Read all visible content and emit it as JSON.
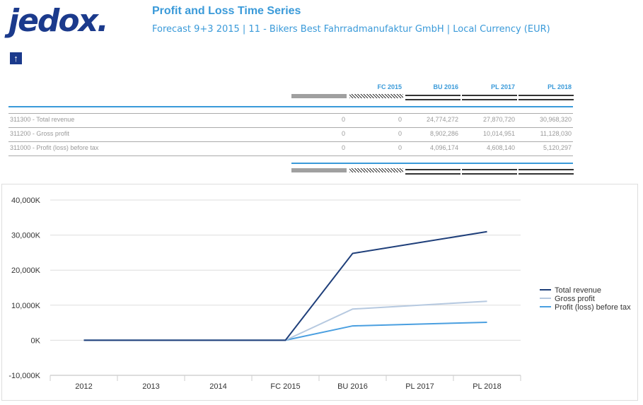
{
  "header": {
    "logo": "jedox.",
    "title": "Profit and Loss Time Series",
    "subtitle": "Forecast 9+3 2015 | 11 - Bikers Best Fahrradmanufaktur GmbH | Local Currency (EUR)",
    "up_icon": "arrow-up-icon"
  },
  "table": {
    "columns": [
      "",
      "FC 2015",
      "BU 2016",
      "PL 2017",
      "PL 2018"
    ],
    "rows": [
      {
        "label": "311300 - Total revenue",
        "values": [
          "0",
          "0",
          "24,774,272",
          "27,870,720",
          "30,968,320"
        ]
      },
      {
        "label": "311200 - Gross profit",
        "values": [
          "0",
          "0",
          "8,902,286",
          "10,014,951",
          "11,128,030"
        ]
      },
      {
        "label": "311000 - Profit (loss) before tax",
        "values": [
          "0",
          "0",
          "4,096,174",
          "4,608,140",
          "5,120,297"
        ]
      }
    ]
  },
  "chart_data": {
    "type": "line",
    "categories": [
      "2012",
      "2013",
      "2014",
      "FC 2015",
      "BU 2016",
      "PL 2017",
      "PL 2018"
    ],
    "y_ticks": [
      "40,000K",
      "30,000K",
      "20,000K",
      "10,000K",
      "0K",
      "-10,000K"
    ],
    "ylim": [
      -10000,
      40000
    ],
    "y_unit": "K",
    "grid": true,
    "legend_position": "right",
    "series": [
      {
        "name": "Total revenue",
        "color": "#1f3f7a",
        "values": [
          0,
          0,
          0,
          0,
          24774.272,
          27870.72,
          30968.32
        ]
      },
      {
        "name": "Gross profit",
        "color": "#b6c9e0",
        "values": [
          0,
          0,
          0,
          0,
          8902.286,
          10014.951,
          11128.03
        ]
      },
      {
        "name": "Profit (loss) before tax",
        "color": "#4a9fe0",
        "values": [
          0,
          0,
          0,
          0,
          4096.174,
          4608.14,
          5120.297
        ]
      }
    ]
  }
}
